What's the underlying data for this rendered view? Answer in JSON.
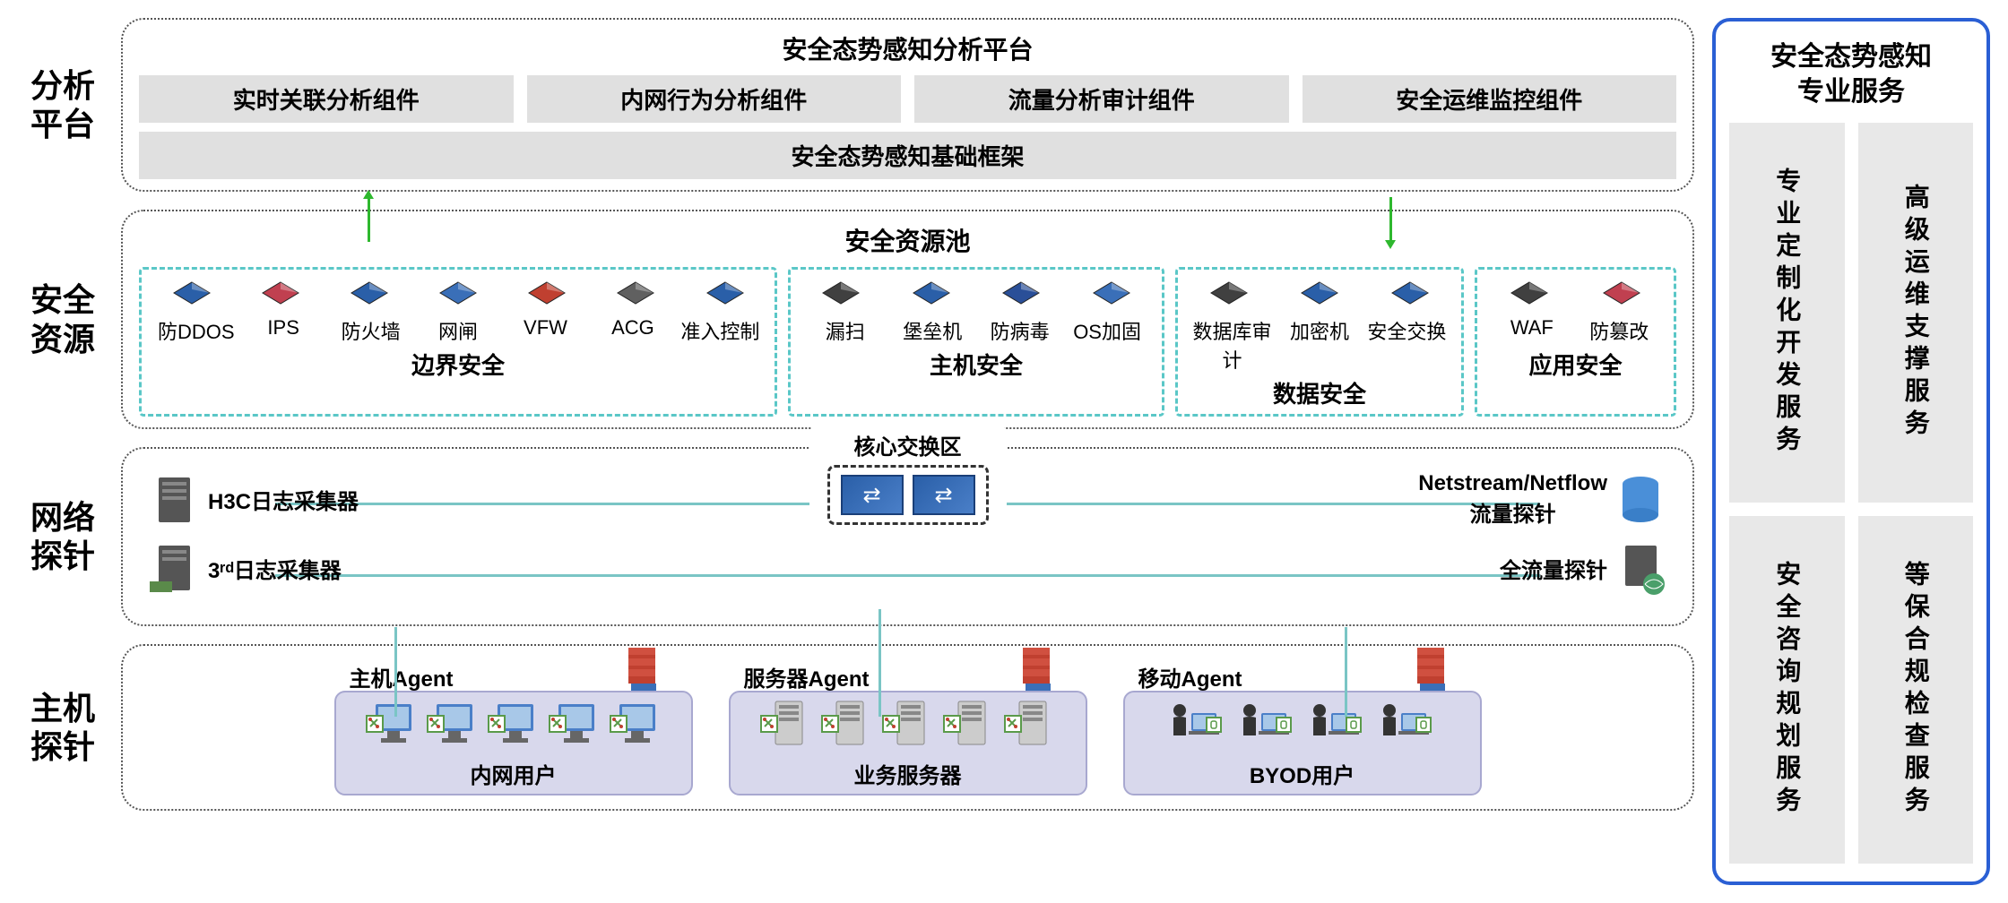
{
  "rows": {
    "analysis": {
      "label": "分析\n平台"
    },
    "resources": {
      "label": "安全\n资源"
    },
    "network": {
      "label": "网络\n探针"
    },
    "host": {
      "label": "主机\n探针"
    }
  },
  "platform": {
    "title": "安全态势感知分析平台",
    "components": [
      "实时关联分析组件",
      "内网行为分析组件",
      "流量分析审计组件",
      "安全运维监控组件"
    ],
    "framework": "安全态势感知基础框架"
  },
  "pool": {
    "title": "安全资源池",
    "groups": [
      {
        "title": "边界安全",
        "items": [
          "防DDOS",
          "IPS",
          "防火墙",
          "网闸",
          "VFW",
          "ACG",
          "准入控制"
        ],
        "colors": [
          "#2a5fa8",
          "#c04050",
          "#2a5fa8",
          "#3a6fb8",
          "#c04030",
          "#606060",
          "#2a5fa8"
        ]
      },
      {
        "title": "主机安全",
        "items": [
          "漏扫",
          "堡垒机",
          "防病毒",
          "OS加固"
        ],
        "colors": [
          "#404040",
          "#2a5fa8",
          "#2a4f98",
          "#3a6fb8"
        ]
      },
      {
        "title": "数据安全",
        "items": [
          "数据库审计",
          "加密机",
          "安全交换"
        ],
        "colors": [
          "#404040",
          "#2a5fa8",
          "#2a5fa8"
        ]
      },
      {
        "title": "应用安全",
        "items": [
          "WAF",
          "防篡改"
        ],
        "colors": [
          "#404040",
          "#c04050"
        ]
      }
    ]
  },
  "probes": {
    "core_switch": "核心交换区",
    "left": [
      {
        "label": "H3C日志采集器"
      },
      {
        "label": "3ʳᵈ日志采集器"
      }
    ],
    "right": [
      {
        "label": "Netstream/Netflow\n流量探针"
      },
      {
        "label": "全流量探针"
      }
    ]
  },
  "agents": [
    {
      "label": "主机Agent",
      "title": "内网用户",
      "type": "pc",
      "count": 5
    },
    {
      "label": "服务器Agent",
      "title": "业务服务器",
      "type": "server",
      "count": 5
    },
    {
      "label": "移动Agent",
      "title": "BYOD用户",
      "type": "person",
      "count": 4
    }
  ],
  "services": {
    "title": "安全态势感知\n专业服务",
    "items": [
      "专业定制化开发服务",
      "高级运维支撑服务",
      "安全咨询规划服务",
      "等保合规检查服务"
    ]
  },
  "colors": {
    "border_blue": "#2a5fd4",
    "dash_teal": "#5ac7c7",
    "line_teal": "#7ac5c5",
    "gray_box": "#e0e0e0",
    "agent_bg": "#d8d8ec",
    "agent_border": "#a8a8d0",
    "green": "#2eb82e"
  }
}
